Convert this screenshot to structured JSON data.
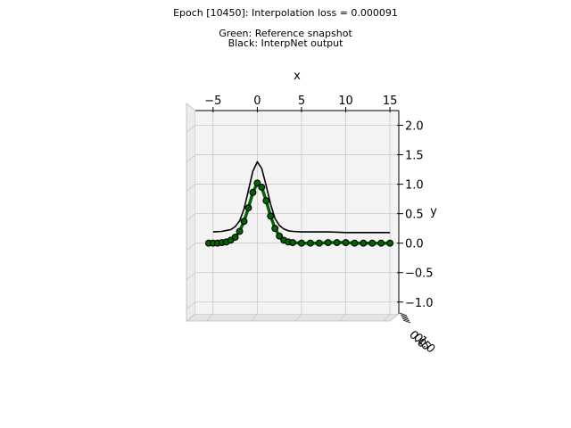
{
  "chart_data": {
    "type": "line",
    "projection": "3d",
    "title": "Epoch [10450]: Interpolation loss = 0.000091",
    "subtitle_lines": [
      "Green: Reference snapshot",
      "Black: InterpNet output"
    ],
    "xlabel": "x",
    "ylabel": "y",
    "xlim": [
      -7,
      16
    ],
    "ylim": [
      -1.2,
      2.25
    ],
    "x_ticks": [
      -5,
      0,
      5,
      10,
      15
    ],
    "y_ticks": [
      -1.0,
      -0.5,
      0.0,
      0.5,
      1.0,
      1.5,
      2.0
    ],
    "x_tick_labels": [
      "−5",
      "0",
      "5",
      "10",
      "15"
    ],
    "y_tick_labels": [
      "−1.0",
      "−0.5",
      "0.0",
      "0.5",
      "1.0",
      "1.5",
      "2.0"
    ],
    "z_tick_labels": [
      "0.0",
      "0.5",
      "1.0"
    ],
    "grid": true,
    "series": [
      {
        "name": "Reference snapshot",
        "color": "#006400",
        "marker": "o",
        "x": [
          -5.5,
          -5,
          -4.5,
          -4,
          -3.5,
          -3,
          -2.5,
          -2,
          -1.5,
          -1,
          -0.5,
          0,
          0.5,
          1,
          1.5,
          2,
          2.5,
          3,
          3.5,
          4,
          5,
          6,
          7,
          8,
          9,
          10,
          11,
          12,
          13,
          14,
          15
        ],
        "y": [
          0.0,
          0.0,
          0.0,
          0.01,
          0.02,
          0.05,
          0.1,
          0.2,
          0.37,
          0.6,
          0.86,
          1.02,
          0.95,
          0.72,
          0.46,
          0.25,
          0.12,
          0.05,
          0.02,
          0.01,
          0.0,
          0.0,
          0.0,
          0.01,
          0.01,
          0.01,
          0.0,
          0.0,
          0.0,
          0.0,
          0.0
        ]
      },
      {
        "name": "InterpNet output",
        "color": "#000000",
        "marker": "",
        "x": [
          -5,
          -4,
          -3,
          -2.5,
          -2,
          -1.5,
          -1,
          -0.5,
          0,
          0.5,
          1,
          1.5,
          2,
          2.5,
          3,
          3.5,
          4,
          5,
          6,
          8,
          10,
          12,
          14,
          15
        ],
        "y": [
          0.19,
          0.2,
          0.23,
          0.28,
          0.38,
          0.58,
          0.9,
          1.22,
          1.38,
          1.27,
          0.98,
          0.66,
          0.42,
          0.3,
          0.24,
          0.21,
          0.2,
          0.19,
          0.19,
          0.19,
          0.18,
          0.18,
          0.18,
          0.18
        ]
      }
    ]
  }
}
